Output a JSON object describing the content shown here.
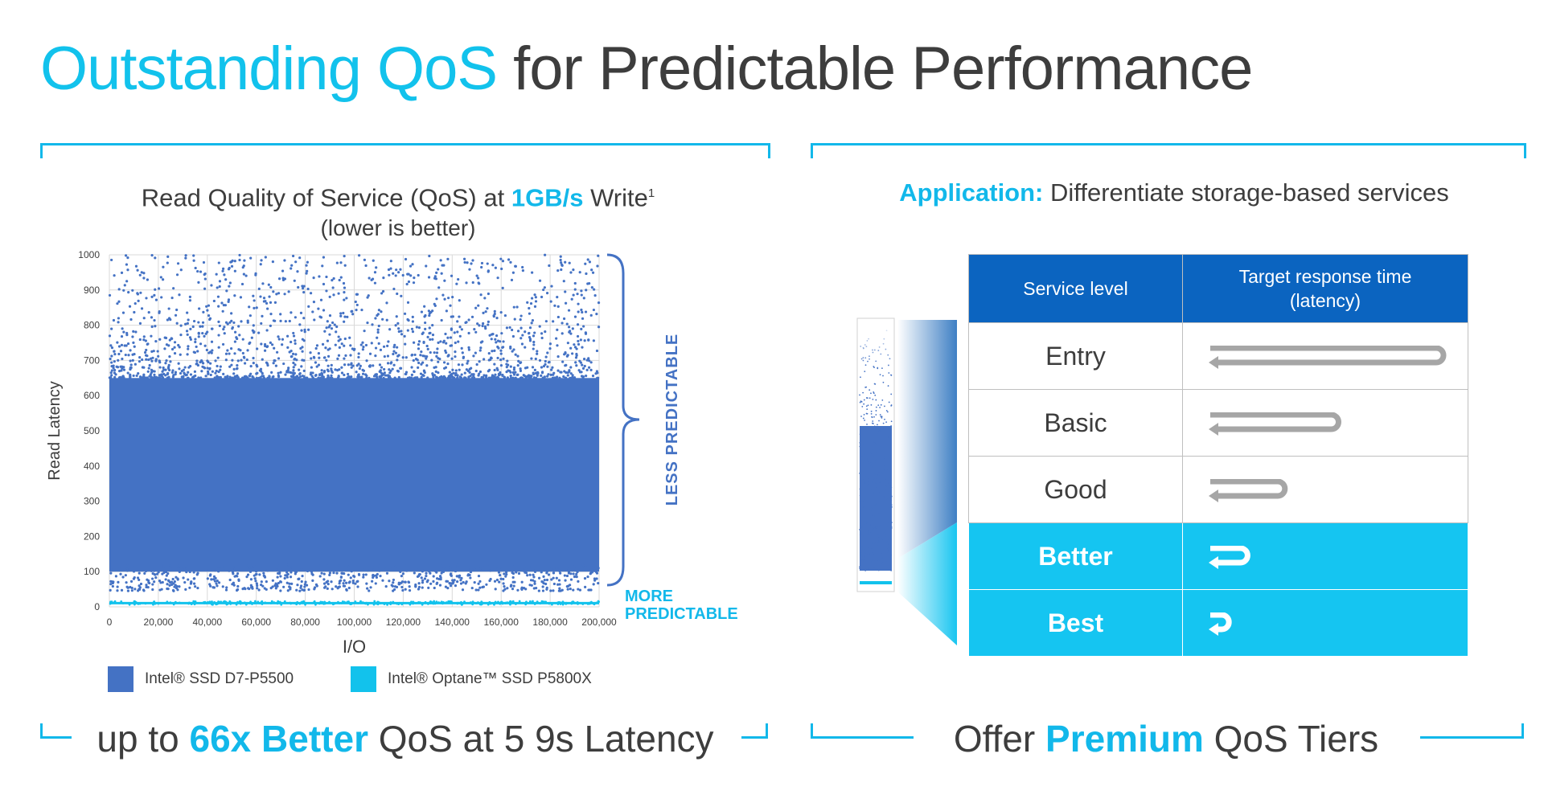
{
  "title": {
    "accent": "Outstanding QoS",
    "rest": "for Predictable Performance"
  },
  "left_panel": {
    "heading_part1": "Read Quality of Service (QoS) at",
    "heading_highlight": "1GB/s",
    "heading_part2": "Write",
    "heading_sup": "1",
    "heading_line2": "(lower is better)",
    "brace_label_less": "LESS PREDICTABLE",
    "label_more_line1": "MORE",
    "label_more_line2": "PREDICTABLE",
    "legend": [
      {
        "label": "Intel® SSD D7-P5500",
        "color": "#4472c4"
      },
      {
        "label": "Intel® Optane™ SSD P5800X",
        "color": "#12c2ec"
      }
    ],
    "footer_prefix": "up to",
    "footer_highlight": "66x Better",
    "footer_suffix": "QoS at 5 9s Latency"
  },
  "chart_data": {
    "type": "scatter",
    "title": "Read Quality of Service (QoS) at 1GB/s Write",
    "subtitle": "(lower is better)",
    "xlabel": "I/O",
    "ylabel": "Read Latency",
    "xlim": [
      0,
      200000
    ],
    "ylim": [
      0,
      1000
    ],
    "x_ticks": [
      0,
      20000,
      40000,
      60000,
      80000,
      100000,
      120000,
      140000,
      160000,
      180000,
      200000
    ],
    "x_tick_labels": [
      "0",
      "20,000",
      "40,000",
      "60,000",
      "80,000",
      "100,000",
      "120,000",
      "140,000",
      "160,000",
      "180,000",
      "200,000"
    ],
    "y_ticks": [
      0,
      100,
      200,
      300,
      400,
      500,
      600,
      700,
      800,
      900,
      1000
    ],
    "y_tick_labels": [
      "0",
      "100",
      "200",
      "300",
      "400",
      "500",
      "600",
      "700",
      "800",
      "900",
      "1000"
    ],
    "grid": true,
    "series": [
      {
        "name": "Intel® SSD D7-P5500",
        "color": "#4472c4",
        "dense_range": [
          100,
          650
        ],
        "max": 1000,
        "min": 45
      },
      {
        "name": "Intel® Optane™ SSD P5800X",
        "color": "#12c2ec",
        "dense_range": [
          8,
          14
        ],
        "max": 16,
        "min": 6
      }
    ]
  },
  "right_panel": {
    "heading_label": "Application:",
    "heading_text": "Differentiate storage-based services",
    "table": {
      "col1_header": "Service level",
      "col2_header_line1": "Target response time",
      "col2_header_line2": "(latency)",
      "rows": [
        {
          "level": "Entry",
          "latency_relative": 1.0,
          "premium": false
        },
        {
          "level": "Basic",
          "latency_relative": 0.55,
          "premium": false
        },
        {
          "level": "Good",
          "latency_relative": 0.32,
          "premium": false
        },
        {
          "level": "Better",
          "latency_relative": 0.16,
          "premium": true
        },
        {
          "level": "Best",
          "latency_relative": 0.08,
          "premium": true
        }
      ]
    },
    "footer_prefix": "Offer",
    "footer_highlight": "Premium",
    "footer_suffix": "QoS Tiers"
  }
}
